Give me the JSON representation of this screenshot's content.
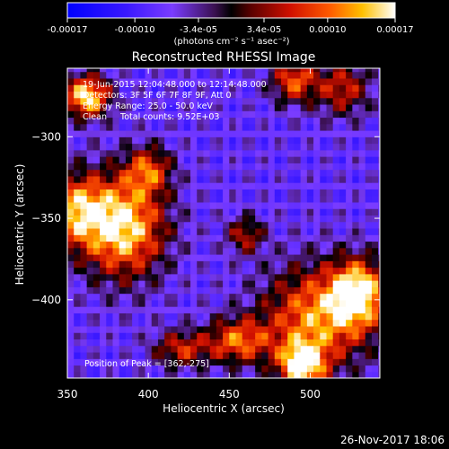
{
  "chart_data": {
    "type": "heatmap",
    "title": "Reconstructed RHESSI Image",
    "xlabel": "Heliocentric X (arcsec)",
    "ylabel": "Heliocentric Y (arcsec)",
    "xlim": [
      350,
      543
    ],
    "ylim": [
      -448,
      -258
    ],
    "x_ticks": [
      350,
      400,
      450,
      500
    ],
    "y_ticks": [
      -300,
      -350,
      -400
    ],
    "x_tick_labels": [
      "350",
      "400",
      "450",
      "500"
    ],
    "y_tick_labels": [
      "−300",
      "−350",
      "−400"
    ],
    "colorbar": {
      "range": [
        -0.00017,
        0.00017
      ],
      "tick_values": [
        -0.00017,
        -0.0001,
        -3.4e-05,
        3.4e-05,
        0.0001,
        0.00017
      ],
      "tick_labels": [
        "-0.00017",
        "-0.00010",
        "-3.4e-05",
        "3.4e-05",
        "0.00010",
        "0.00017"
      ],
      "units_label": "(photons cm⁻² s⁻¹ asec⁻²)"
    },
    "annotations": [
      "19-Jun-2015 12:04:48.000 to 12:14:48.000",
      "Detectors: 3F 5F 6F 7F 8F 9F, Att 0",
      "Energy Range: 25.0 - 50.0 keV",
      "Clean     Total counts: 9.52E+03"
    ],
    "peak_label": "Position of Peak = [362,-275]",
    "peak": [
      362,
      -275
    ],
    "sources": [
      {
        "x": 362,
        "y": -275,
        "flux": 0.00017,
        "sx": 10,
        "sy": 9
      },
      {
        "x": 385,
        "y": -355,
        "flux": 0.00016,
        "sx": 18,
        "sy": 22
      },
      {
        "x": 400,
        "y": -320,
        "flux": 7e-05,
        "sx": 10,
        "sy": 10
      },
      {
        "x": 355,
        "y": -345,
        "flux": 0.00011,
        "sx": 14,
        "sy": 16
      },
      {
        "x": 455,
        "y": -425,
        "flux": 9e-05,
        "sx": 14,
        "sy": 10
      },
      {
        "x": 505,
        "y": -410,
        "flux": 0.00012,
        "sx": 24,
        "sy": 22
      },
      {
        "x": 530,
        "y": -395,
        "flux": 0.00014,
        "sx": 12,
        "sy": 14
      },
      {
        "x": 495,
        "y": -440,
        "flux": 0.00016,
        "sx": 10,
        "sy": 10
      },
      {
        "x": 520,
        "y": -270,
        "flux": 6e-05,
        "sx": 12,
        "sy": 12
      },
      {
        "x": 490,
        "y": -265,
        "flux": 9e-05,
        "sx": 10,
        "sy": 10
      },
      {
        "x": 420,
        "y": -430,
        "flux": 6e-05,
        "sx": 12,
        "sy": 8
      },
      {
        "x": 460,
        "y": -360,
        "flux": 5e-05,
        "sx": 8,
        "sy": 8
      }
    ],
    "grid": false
  },
  "footer": {
    "date": "26-Nov-2017 18:06"
  }
}
